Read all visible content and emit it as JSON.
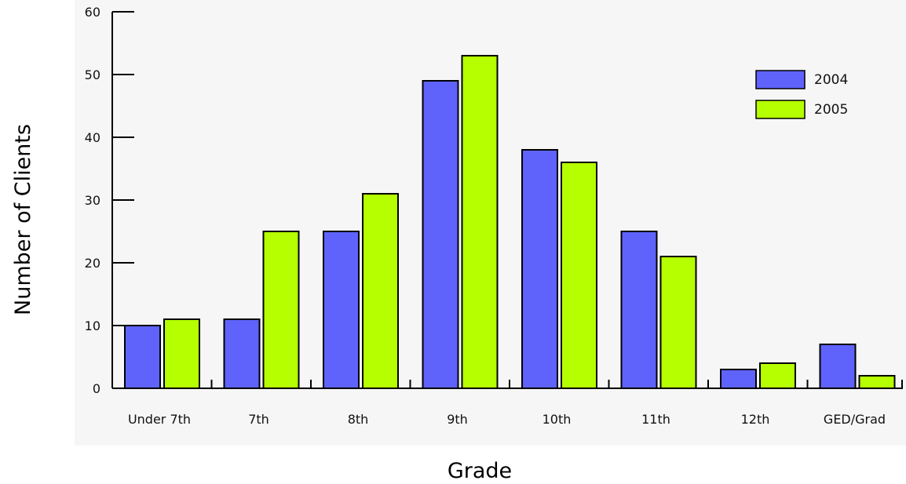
{
  "chart_data": {
    "type": "bar",
    "title": "",
    "xlabel": "Grade",
    "ylabel": "Number of Clients",
    "categories": [
      "Under 7th",
      "7th",
      "8th",
      "9th",
      "10th",
      "11th",
      "12th",
      "GED/Grad"
    ],
    "series": [
      {
        "name": "2004",
        "color": "#5f63fb",
        "values": [
          10,
          11,
          25,
          49,
          38,
          25,
          3,
          7
        ]
      },
      {
        "name": "2005",
        "color": "#b6ff00",
        "values": [
          11,
          25,
          31,
          53,
          36,
          21,
          4,
          2
        ]
      }
    ],
    "ylim": [
      0,
      60
    ],
    "yticks": [
      "0",
      "10",
      "20",
      "30",
      "40",
      "50",
      "60"
    ],
    "grid": false,
    "legend_position": "top-right",
    "background": "#f6f6f6"
  }
}
